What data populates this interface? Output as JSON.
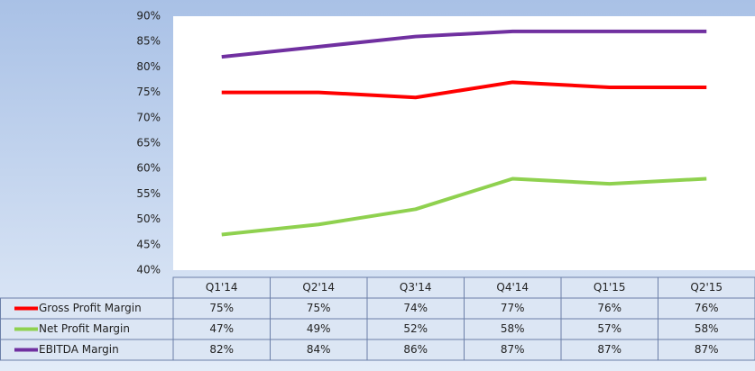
{
  "chart_data": {
    "type": "line",
    "categories": [
      "Q1'14",
      "Q2'14",
      "Q3'14",
      "Q4'14",
      "Q1'15",
      "Q2'15"
    ],
    "series": [
      {
        "name": "Gross Profit Margin",
        "color": "#ff0000",
        "values": [
          75,
          75,
          74,
          77,
          76,
          76
        ],
        "value_labels": [
          "75%",
          "75%",
          "74%",
          "77%",
          "76%",
          "76%"
        ]
      },
      {
        "name": "Net Profit Margin",
        "color": "#8fd14f",
        "values": [
          47,
          49,
          52,
          58,
          57,
          58
        ],
        "value_labels": [
          "47%",
          "49%",
          "52%",
          "58%",
          "57%",
          "58%"
        ]
      },
      {
        "name": "EBITDA Margin",
        "color": "#7030a0",
        "values": [
          82,
          84,
          86,
          87,
          87,
          87
        ],
        "value_labels": [
          "82%",
          "84%",
          "86%",
          "87%",
          "87%",
          "87%"
        ]
      }
    ],
    "ylim": [
      40,
      90
    ],
    "yticks": [
      {
        "value": 40,
        "label": "40%"
      },
      {
        "value": 45,
        "label": "45%"
      },
      {
        "value": 50,
        "label": "50%"
      },
      {
        "value": 55,
        "label": "55%"
      },
      {
        "value": 60,
        "label": "60%"
      },
      {
        "value": 65,
        "label": "65%"
      },
      {
        "value": 70,
        "label": "70%"
      },
      {
        "value": 75,
        "label": "75%"
      },
      {
        "value": 80,
        "label": "80%"
      },
      {
        "value": 85,
        "label": "85%"
      },
      {
        "value": 90,
        "label": "90%"
      }
    ],
    "grid": false
  }
}
